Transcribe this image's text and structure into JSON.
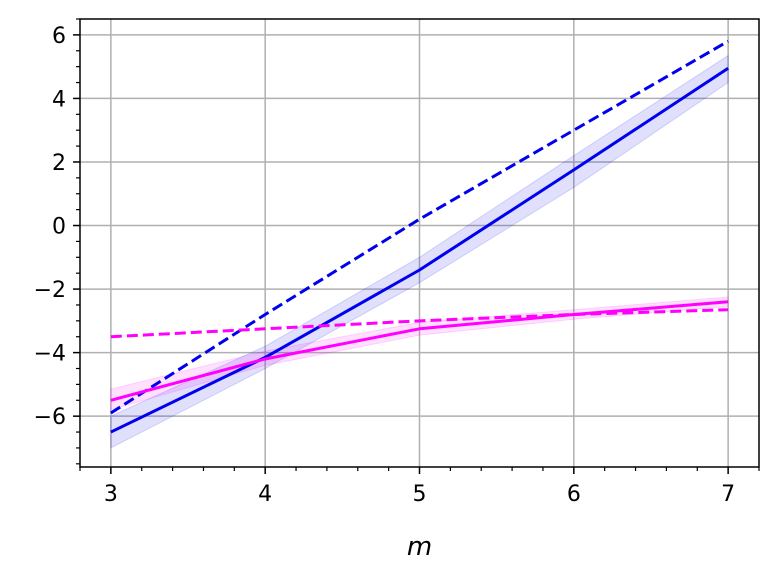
{
  "chart_data": {
    "type": "line",
    "xlabel": "m",
    "ylabel": "",
    "title": "",
    "xlim": [
      2.8,
      7.2
    ],
    "ylim": [
      -7.6,
      6.5
    ],
    "x_ticks": [
      3,
      4,
      5,
      6,
      7
    ],
    "y_ticks": [
      -6,
      -4,
      -2,
      0,
      2,
      4,
      6
    ],
    "x_tick_labels": [
      "3",
      "4",
      "5",
      "6",
      "7"
    ],
    "y_tick_labels": [
      "−6",
      "−4",
      "−2",
      "0",
      "2",
      "4",
      "6"
    ],
    "x_minor_step": 0.2,
    "y_minor_step": 0.5,
    "grid": true,
    "legend": "none",
    "series": [
      {
        "color": "#0000ee",
        "style": "solid",
        "x": [
          3,
          4,
          5,
          6,
          7
        ],
        "values": [
          -6.5,
          -4.15,
          -1.4,
          1.75,
          4.95
        ],
        "band_lower": [
          -7.0,
          -4.5,
          -1.8,
          1.2,
          4.5
        ],
        "band_upper": [
          -6.0,
          -3.8,
          -1.0,
          2.2,
          5.35
        ]
      },
      {
        "color": "#0000ee",
        "style": "dashed",
        "x": [
          3,
          4,
          5,
          6,
          7
        ],
        "values": [
          -5.9,
          -2.8,
          0.2,
          3.0,
          5.8
        ]
      },
      {
        "color": "#ff00ff",
        "style": "solid",
        "x": [
          3,
          4,
          5,
          6,
          7
        ],
        "values": [
          -5.5,
          -4.2,
          -3.25,
          -2.8,
          -2.4
        ],
        "band_lower": [
          -5.8,
          -4.4,
          -3.45,
          -2.95,
          -2.55
        ],
        "band_upper": [
          -5.15,
          -3.95,
          -3.05,
          -2.65,
          -2.25
        ]
      },
      {
        "color": "#ff00ff",
        "style": "dashed",
        "x": [
          3,
          4,
          5,
          6,
          7
        ],
        "values": [
          -3.5,
          -3.25,
          -3.0,
          -2.8,
          -2.65
        ]
      }
    ]
  }
}
